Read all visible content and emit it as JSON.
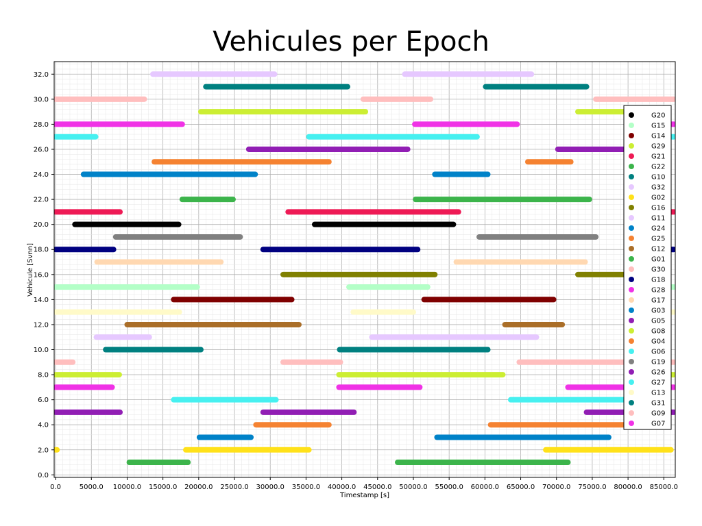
{
  "chart_data": {
    "type": "scatter",
    "title": "Vehicules per Epoch",
    "xlabel": "Timestamp [s]",
    "ylabel": "Vehicule [Svnn]",
    "xlim": [
      -200,
      86600
    ],
    "ylim": [
      -0.2,
      33.0
    ],
    "x_ticks": [
      0,
      5000,
      10000,
      15000,
      20000,
      25000,
      30000,
      35000,
      40000,
      45000,
      50000,
      55000,
      60000,
      65000,
      70000,
      75000,
      80000,
      85000
    ],
    "x_tick_labels": [
      "0.0",
      "5000.0",
      "10000.0",
      "15000.0",
      "20000.0",
      "25000.0",
      "30000.0",
      "35000.0",
      "40000.0",
      "45000.0",
      "50000.0",
      "55000.0",
      "60000.0",
      "65000.0",
      "70000.0",
      "75000.0",
      "80000.0",
      "85000.0"
    ],
    "y_ticks": [
      0,
      2,
      4,
      6,
      8,
      10,
      12,
      14,
      16,
      18,
      20,
      22,
      24,
      26,
      28,
      30,
      32
    ],
    "y_tick_labels": [
      "0.0",
      "2.0",
      "4.0",
      "6.0",
      "8.0",
      "10.0",
      "12.0",
      "14.0",
      "16.0",
      "18.0",
      "20.0",
      "22.0",
      "24.0",
      "26.0",
      "28.0",
      "30.0",
      "32.0"
    ],
    "grid": "major and minor",
    "legend_position": "right",
    "series": [
      {
        "name": "G20",
        "y": 20,
        "color": "#000000",
        "intervals": [
          [
            2700,
            17200
          ],
          [
            36200,
            55600
          ]
        ]
      },
      {
        "name": "G15",
        "y": 15,
        "color": "#b3ffc7",
        "intervals": [
          [
            0,
            19800
          ],
          [
            41000,
            52000
          ],
          [
            80000,
            86400
          ]
        ]
      },
      {
        "name": "G14",
        "y": 14,
        "color": "#7f0000",
        "intervals": [
          [
            16500,
            33000
          ],
          [
            51500,
            69600
          ]
        ]
      },
      {
        "name": "G29",
        "y": 29,
        "color": "#ccee33",
        "intervals": [
          [
            20300,
            43300
          ],
          [
            73000,
            80000
          ]
        ]
      },
      {
        "name": "G21",
        "y": 21,
        "color": "#ee1a55",
        "intervals": [
          [
            0,
            9000
          ],
          [
            32500,
            56300
          ],
          [
            84000,
            86400
          ]
        ]
      },
      {
        "name": "G22",
        "y": 22,
        "color": "#3cb44b",
        "intervals": [
          [
            17700,
            24800
          ],
          [
            50300,
            74600
          ]
        ]
      },
      {
        "name": "G10",
        "y": 10,
        "color": "#008080",
        "intervals": [
          [
            7000,
            20300
          ],
          [
            39700,
            60400
          ]
        ]
      },
      {
        "name": "G32",
        "y": 32,
        "color": "#e6c8ff",
        "intervals": [
          [
            13600,
            30600
          ],
          [
            48800,
            66500
          ]
        ]
      },
      {
        "name": "G02",
        "y": 2,
        "color": "#ffe119",
        "intervals": [
          [
            0,
            200
          ],
          [
            18200,
            35400
          ],
          [
            68500,
            86000
          ]
        ]
      },
      {
        "name": "G16",
        "y": 16,
        "color": "#808000",
        "intervals": [
          [
            31800,
            53000
          ],
          [
            73000,
            80000
          ]
        ]
      },
      {
        "name": "G11",
        "y": 11,
        "color": "#e6c8ff",
        "intervals": [
          [
            5700,
            13100
          ],
          [
            44200,
            67200
          ]
        ]
      },
      {
        "name": "G24",
        "y": 24,
        "color": "#0082c8",
        "intervals": [
          [
            3900,
            27900
          ],
          [
            53000,
            60400
          ]
        ]
      },
      {
        "name": "G25",
        "y": 25,
        "color": "#f58231",
        "intervals": [
          [
            13800,
            38200
          ],
          [
            66000,
            72000
          ]
        ]
      },
      {
        "name": "G12",
        "y": 12,
        "color": "#aa6e28",
        "intervals": [
          [
            10000,
            34000
          ],
          [
            62800,
            70800
          ]
        ]
      },
      {
        "name": "G01",
        "y": 1,
        "color": "#3cb44b",
        "intervals": [
          [
            10300,
            18500
          ],
          [
            47800,
            71600
          ]
        ]
      },
      {
        "name": "G30",
        "y": 30,
        "color": "#ffbebe",
        "intervals": [
          [
            0,
            12400
          ],
          [
            43000,
            52400
          ],
          [
            75500,
            86400
          ]
        ]
      },
      {
        "name": "G18",
        "y": 18,
        "color": "#000080",
        "intervals": [
          [
            0,
            8100
          ],
          [
            29000,
            50600
          ],
          [
            84000,
            86400
          ]
        ]
      },
      {
        "name": "G28",
        "y": 28,
        "color": "#f032e6",
        "intervals": [
          [
            0,
            17700
          ],
          [
            50200,
            64500
          ],
          [
            84000,
            86400
          ]
        ]
      },
      {
        "name": "G17",
        "y": 17,
        "color": "#ffd8b1",
        "intervals": [
          [
            5800,
            23100
          ],
          [
            56000,
            74000
          ]
        ]
      },
      {
        "name": "G03",
        "y": 3,
        "color": "#0082c8",
        "intervals": [
          [
            20100,
            27300
          ],
          [
            53300,
            77300
          ]
        ]
      },
      {
        "name": "G05",
        "y": 26,
        "color": "#911eb4",
        "intervals": [
          [
            27000,
            49200
          ],
          [
            70200,
            80000
          ]
        ]
      },
      {
        "name": "G08",
        "y": 8,
        "color": "#ccee33",
        "intervals": [
          [
            0,
            8900
          ],
          [
            39600,
            62500
          ],
          [
            84000,
            86400
          ]
        ]
      },
      {
        "name": "G04",
        "y": 4,
        "color": "#f58231",
        "intervals": [
          [
            28000,
            38200
          ],
          [
            60800,
            80000
          ]
        ]
      },
      {
        "name": "G06",
        "y": 27,
        "color": "#46f0f0",
        "intervals": [
          [
            0,
            5600
          ],
          [
            35400,
            58900
          ],
          [
            84000,
            86400
          ]
        ]
      },
      {
        "name": "G19",
        "y": 19,
        "color": "#808080",
        "intervals": [
          [
            8400,
            25800
          ],
          [
            59200,
            75500
          ]
        ]
      },
      {
        "name": "G26",
        "y": 5,
        "color": "#911eb4",
        "intervals": [
          [
            0,
            9000
          ],
          [
            29000,
            41700
          ],
          [
            74200,
            86400
          ]
        ]
      },
      {
        "name": "G27",
        "y": 6,
        "color": "#46f0f0",
        "intervals": [
          [
            16500,
            30800
          ],
          [
            63600,
            80000
          ]
        ]
      },
      {
        "name": "G13",
        "y": 13,
        "color": "#fffac8",
        "intervals": [
          [
            0,
            17300
          ],
          [
            41600,
            50000
          ],
          [
            84000,
            86400
          ]
        ]
      },
      {
        "name": "G31",
        "y": 31,
        "color": "#008080",
        "intervals": [
          [
            21000,
            40800
          ],
          [
            60100,
            74200
          ]
        ]
      },
      {
        "name": "G09",
        "y": 9,
        "color": "#ffbebe",
        "intervals": [
          [
            0,
            2400
          ],
          [
            31800,
            39800
          ],
          [
            64800,
            86400
          ]
        ]
      },
      {
        "name": "G07",
        "y": 7,
        "color": "#f032e6",
        "intervals": [
          [
            0,
            7900
          ],
          [
            39600,
            50900
          ],
          [
            71600,
            86400
          ]
        ]
      }
    ]
  }
}
